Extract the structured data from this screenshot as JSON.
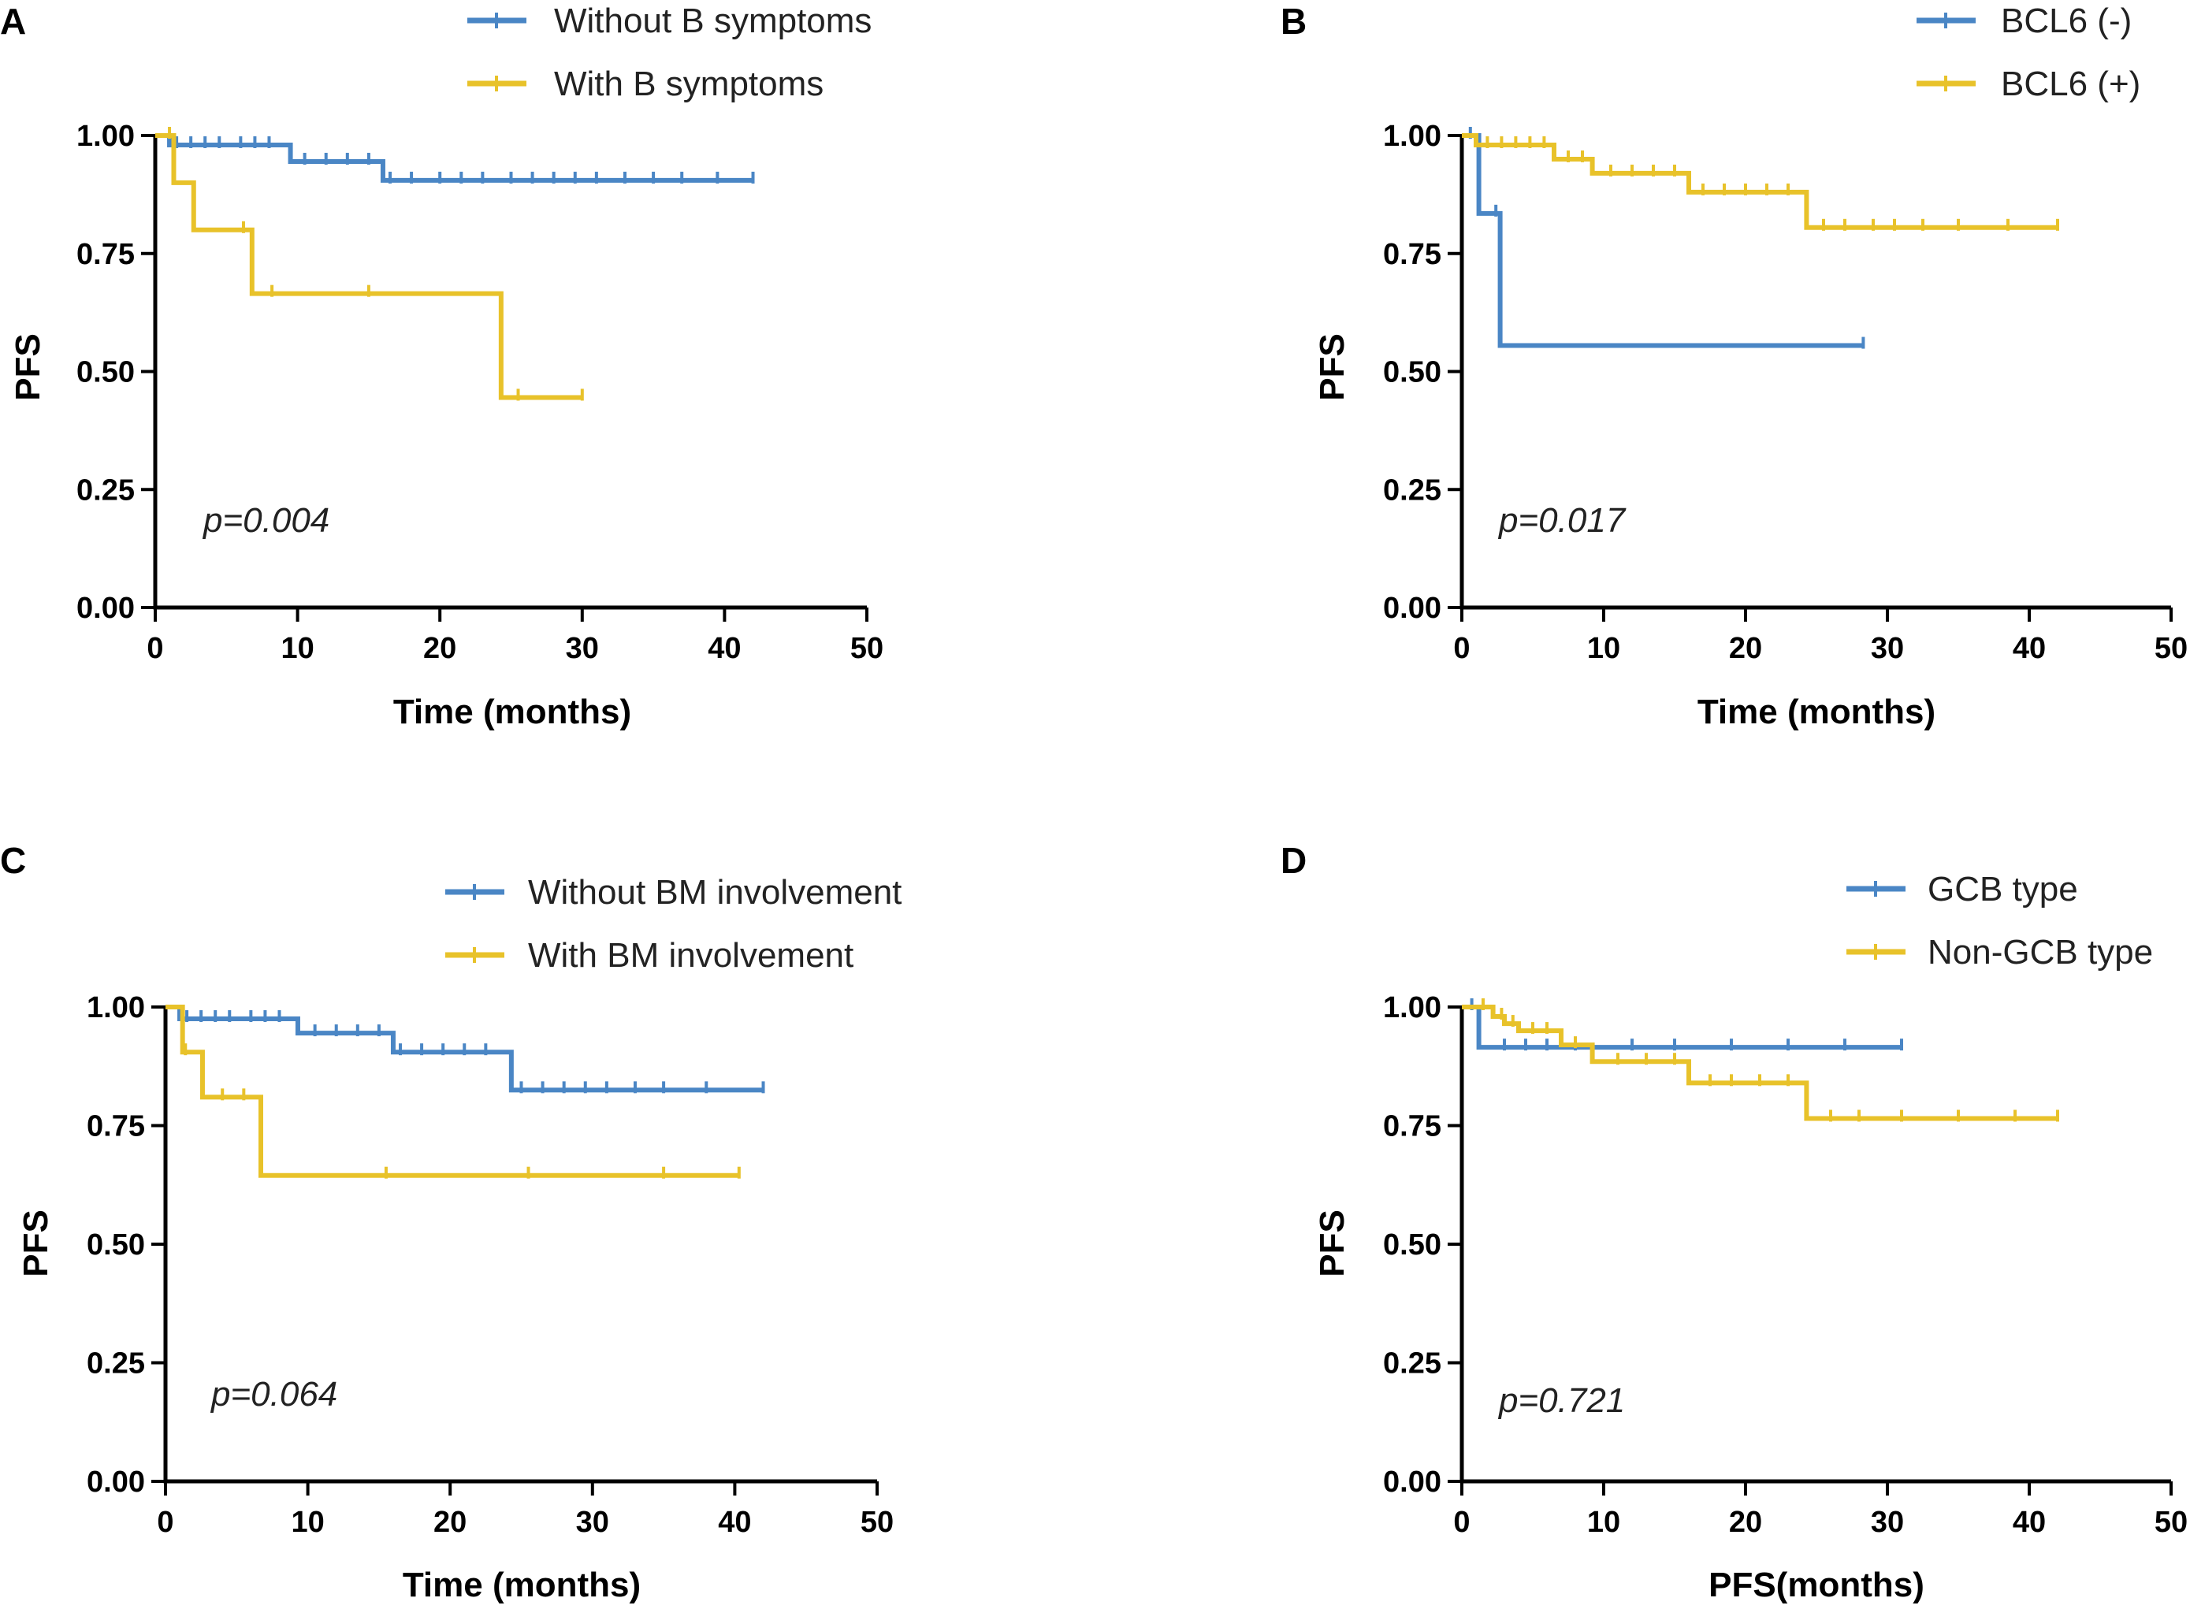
{
  "colors": {
    "series_a": "#4a86c5",
    "series_b": "#e8c22a",
    "axis": "#000000"
  },
  "chart_data": [
    {
      "type": "line",
      "panel": "A",
      "xlabel": "Time (months)",
      "ylabel": "PFS",
      "xlim": [
        0,
        50
      ],
      "ylim": [
        0,
        1
      ],
      "xticks": [
        "0",
        "10",
        "20",
        "30",
        "40",
        "50"
      ],
      "yticks": [
        "0.00",
        "0.25",
        "0.50",
        "0.75",
        "1.00"
      ],
      "xtick_values": [
        0,
        10,
        20,
        30,
        40,
        50
      ],
      "ytick_values": [
        0,
        0.25,
        0.5,
        0.75,
        1.0
      ],
      "pvalue": "p=0.004",
      "series": [
        {
          "name": "Without B symptoms",
          "color": "#4a86c5",
          "steps": [
            [
              0,
              1.0
            ],
            [
              1.0,
              0.98
            ],
            [
              9.5,
              0.945
            ],
            [
              16.0,
              0.905
            ],
            [
              42.0,
              0.905
            ]
          ],
          "censored": [
            1.5,
            2.5,
            3.5,
            4.5,
            6,
            7,
            8,
            10.5,
            12,
            13.5,
            15,
            16.5,
            18,
            20,
            21.5,
            23,
            25,
            26.5,
            28,
            29.5,
            31,
            33,
            35,
            37,
            39.5,
            42
          ]
        },
        {
          "name": "With B symptoms",
          "color": "#e8c22a",
          "steps": [
            [
              0,
              1.0
            ],
            [
              1.3,
              0.9
            ],
            [
              2.7,
              0.8
            ],
            [
              6.8,
              0.665
            ],
            [
              24.3,
              0.445
            ],
            [
              30.0,
              0.445
            ]
          ],
          "censored": [
            1.0,
            6.2,
            8.2,
            15.0,
            25.5,
            30.0
          ]
        }
      ]
    },
    {
      "type": "line",
      "panel": "B",
      "xlabel": "Time (months)",
      "ylabel": "PFS",
      "xlim": [
        0,
        50
      ],
      "ylim": [
        0,
        1
      ],
      "xticks": [
        "0",
        "10",
        "20",
        "30",
        "40",
        "50"
      ],
      "yticks": [
        "0.00",
        "0.25",
        "0.50",
        "0.75",
        "1.00"
      ],
      "xtick_values": [
        0,
        10,
        20,
        30,
        40,
        50
      ],
      "ytick_values": [
        0,
        0.25,
        0.5,
        0.75,
        1.0
      ],
      "pvalue": "p=0.017",
      "series": [
        {
          "name": "BCL6 (-)",
          "color": "#4a86c5",
          "steps": [
            [
              0,
              1.0
            ],
            [
              1.2,
              0.835
            ],
            [
              2.7,
              0.555
            ],
            [
              28.3,
              0.555
            ]
          ],
          "censored": [
            0.6,
            2.4,
            28.3
          ]
        },
        {
          "name": "BCL6 (+)",
          "color": "#e8c22a",
          "steps": [
            [
              0,
              1.0
            ],
            [
              1.0,
              0.98
            ],
            [
              6.5,
              0.95
            ],
            [
              9.2,
              0.92
            ],
            [
              16.0,
              0.88
            ],
            [
              24.3,
              0.805
            ],
            [
              42.0,
              0.805
            ]
          ],
          "censored": [
            1.8,
            2.8,
            3.8,
            4.8,
            5.8,
            7.5,
            8.5,
            10.5,
            12,
            13.5,
            15,
            17,
            18.5,
            20,
            21.5,
            23,
            25.5,
            27,
            29,
            30.5,
            32.5,
            35,
            38.5,
            42
          ]
        }
      ]
    },
    {
      "type": "line",
      "panel": "C",
      "xlabel": "Time (months)",
      "ylabel": "PFS",
      "xlim": [
        0,
        50
      ],
      "ylim": [
        0,
        1
      ],
      "xticks": [
        "0",
        "10",
        "20",
        "30",
        "40",
        "50"
      ],
      "yticks": [
        "0.00",
        "0.25",
        "0.50",
        "0.75",
        "1.00"
      ],
      "xtick_values": [
        0,
        10,
        20,
        30,
        40,
        50
      ],
      "ytick_values": [
        0,
        0.25,
        0.5,
        0.75,
        1.0
      ],
      "pvalue": "p=0.064",
      "series": [
        {
          "name": "Without BM involvement",
          "color": "#4a86c5",
          "steps": [
            [
              0,
              1.0
            ],
            [
              1.0,
              0.975
            ],
            [
              9.3,
              0.945
            ],
            [
              16.0,
              0.905
            ],
            [
              24.3,
              0.825
            ],
            [
              42.0,
              0.825
            ]
          ],
          "censored": [
            1.5,
            2.5,
            3.5,
            4.5,
            6,
            7,
            8,
            10.5,
            12,
            13.5,
            15,
            16.5,
            18,
            19.5,
            21,
            22.5,
            25,
            26.5,
            28,
            29.5,
            31,
            33,
            35,
            38,
            42
          ]
        },
        {
          "name": "With BM involvement",
          "color": "#e8c22a",
          "steps": [
            [
              0,
              1.0
            ],
            [
              1.2,
              0.905
            ],
            [
              2.6,
              0.81
            ],
            [
              6.7,
              0.645
            ],
            [
              40.3,
              0.645
            ]
          ],
          "censored": [
            1.4,
            4.0,
            5.5,
            15.5,
            25.5,
            35.0,
            40.3
          ]
        }
      ]
    },
    {
      "type": "line",
      "panel": "D",
      "xlabel": "PFS(months)",
      "ylabel": "PFS",
      "xlim": [
        0,
        50
      ],
      "ylim": [
        0,
        1
      ],
      "xticks": [
        "0",
        "10",
        "20",
        "30",
        "40",
        "50"
      ],
      "yticks": [
        "0.00",
        "0.25",
        "0.50",
        "0.75",
        "1.00"
      ],
      "xtick_values": [
        0,
        10,
        20,
        30,
        40,
        50
      ],
      "ytick_values": [
        0,
        0.25,
        0.5,
        0.75,
        1.0
      ],
      "pvalue": "p=0.721",
      "series": [
        {
          "name": "GCB type",
          "color": "#4a86c5",
          "steps": [
            [
              0,
              1.0
            ],
            [
              1.2,
              0.915
            ],
            [
              31.0,
              0.915
            ]
          ],
          "censored": [
            0.7,
            3.0,
            4.5,
            6,
            8,
            12,
            15,
            19,
            23,
            27,
            31
          ]
        },
        {
          "name": "Non-GCB type",
          "color": "#e8c22a",
          "steps": [
            [
              0,
              1.0
            ],
            [
              2.2,
              0.98
            ],
            [
              3.0,
              0.965
            ],
            [
              4.0,
              0.95
            ],
            [
              7.0,
              0.92
            ],
            [
              9.2,
              0.885
            ],
            [
              16.0,
              0.84
            ],
            [
              24.3,
              0.765
            ],
            [
              42.0,
              0.765
            ]
          ],
          "censored": [
            1.5,
            2.8,
            3.6,
            5,
            6,
            8,
            11,
            13,
            15,
            17.5,
            19,
            21,
            23,
            26,
            28,
            31,
            35,
            39,
            42
          ]
        }
      ]
    }
  ]
}
